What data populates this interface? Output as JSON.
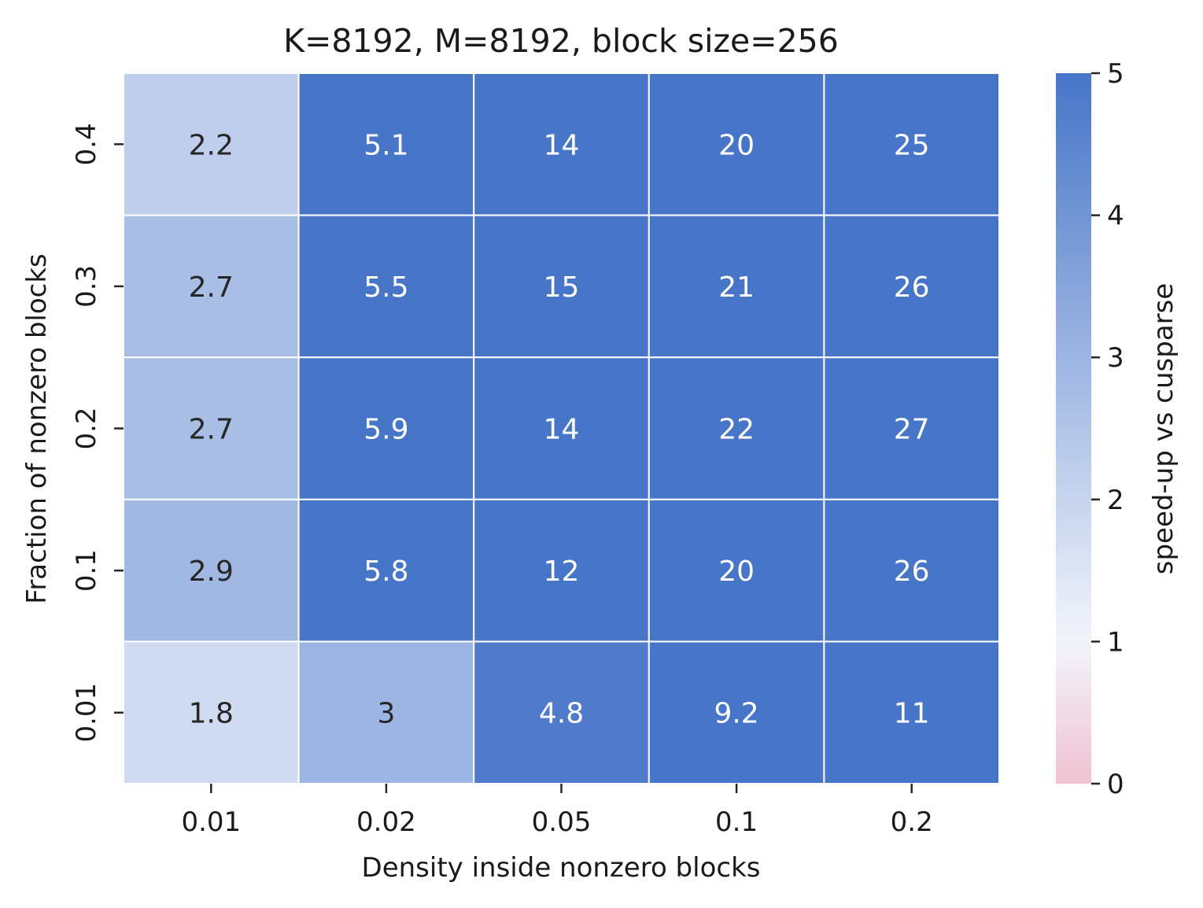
{
  "chart_data": {
    "type": "heatmap",
    "title": "K=8192, M=8192, block size=256",
    "xlabel": "Density inside nonzero blocks",
    "ylabel": "Fraction of nonzero blocks",
    "x_categories": [
      "0.01",
      "0.02",
      "0.05",
      "0.1",
      "0.2"
    ],
    "y_categories": [
      "0.4",
      "0.3",
      "0.2",
      "0.1",
      "0.01"
    ],
    "values": [
      [
        2.2,
        5.1,
        14,
        20,
        25
      ],
      [
        2.7,
        5.5,
        15,
        21,
        26
      ],
      [
        2.7,
        5.9,
        14,
        22,
        27
      ],
      [
        2.9,
        5.8,
        12,
        20,
        26
      ],
      [
        1.8,
        3,
        4.8,
        9.2,
        11
      ]
    ],
    "colorbar": {
      "label": "speed-up vs cusparse",
      "min": 0,
      "max": 5,
      "ticks": [
        "0",
        "1",
        "2",
        "3",
        "4",
        "5"
      ],
      "colors": {
        "low": "#f0c2d2",
        "mid": "#f2f4fb",
        "high": "#4775c8"
      }
    },
    "grid": "white",
    "annotations": true
  }
}
